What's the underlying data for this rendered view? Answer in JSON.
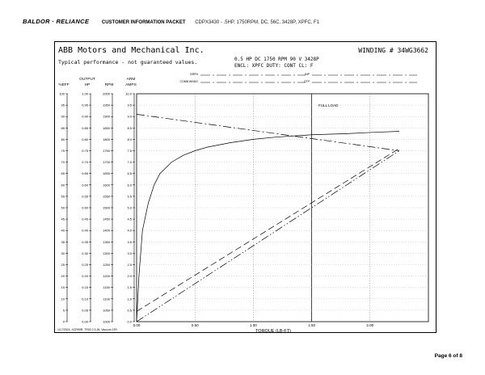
{
  "header": {
    "brand": "BALDOR · RELIANCE",
    "packet": "CUSTOMER INFORMATION PACKET",
    "description": "CDPX3430 - .5HP, 1750RPM, DC, 56C, 3428P, XPFC, F1"
  },
  "sheet": {
    "company": "ABB Motors and Mechanical Inc.",
    "winding": "WINDING # 34WG3662",
    "disclaimer": "Typical performance - not guaranteed values.",
    "spec_line1": "0.5 HP  DC  1750 RPM  90 V  3428P",
    "spec_line2": "ENCL: XPFC  DUTY: CONT  CL: F",
    "field_labels": [
      "GRPH",
      "COMB WNDG",
      "INP",
      "OTP"
    ],
    "footer_note": "1/17/2024, XCR99R, 7R00 2.3.26, Vaccum 1RY",
    "full_load_label": "FULL LOAD"
  },
  "chart_data": {
    "type": "line",
    "title": "",
    "xlabel": "TORQUE (LB-FT)",
    "xlim": [
      0,
      2.5
    ],
    "x_ticks": [
      "0.00",
      "0.50",
      "1.00",
      "1.50",
      "2.00"
    ],
    "axes": [
      {
        "label": "%EFF",
        "header": "",
        "range": [
          0,
          100
        ],
        "ticks": [
          "0",
          "5",
          "10",
          "15",
          "20",
          "25",
          "30",
          "35",
          "40",
          "45",
          "50",
          "55",
          "60",
          "65",
          "70",
          "75",
          "80",
          "85",
          "90",
          "95",
          "100"
        ]
      },
      {
        "label": "HP",
        "header": "OUTPUT",
        "range": [
          0,
          1
        ],
        "ticks": [
          "0.00",
          "0.05",
          "0.10",
          "0.15",
          "0.20",
          "0.25",
          "0.30",
          "0.35",
          "0.40",
          "0.45",
          "0.50",
          "0.55",
          "0.60",
          "0.65",
          "0.70",
          "0.75",
          "0.80",
          "0.85",
          "0.90",
          "0.95",
          "1.00"
        ]
      },
      {
        "label": "RPM",
        "header": "",
        "range": [
          1000,
          2000
        ],
        "ticks": [
          "1000",
          "1050",
          "1100",
          "1150",
          "1200",
          "1250",
          "1300",
          "1350",
          "1400",
          "1450",
          "1500",
          "1550",
          "1600",
          "1650",
          "1700",
          "1750",
          "1800",
          "1850",
          "1900",
          "1950",
          "2000"
        ]
      },
      {
        "label": "AMPS",
        "header": "ARM",
        "range": [
          0,
          10
        ],
        "ticks": [
          "0.0",
          "0.5",
          "1.0",
          "1.5",
          "2.0",
          "2.5",
          "3.0",
          "3.5",
          "4.0",
          "4.5",
          "5.0",
          "5.5",
          "6.0",
          "6.5",
          "7.0",
          "7.5",
          "8.0",
          "8.5",
          "9.0",
          "9.5",
          "10.0"
        ]
      }
    ],
    "full_load_torque": 1.5,
    "series": [
      {
        "axis": "%EFF",
        "style": "solid",
        "x": [
          0.0,
          0.02,
          0.05,
          0.1,
          0.15,
          0.2,
          0.3,
          0.4,
          0.5,
          0.6,
          0.8,
          1.0,
          1.2,
          1.5,
          1.8,
          2.0,
          2.25
        ],
        "y": [
          0,
          20,
          40,
          52,
          60,
          65,
          70,
          73,
          75,
          76.5,
          78.5,
          80,
          81,
          82,
          82.5,
          83,
          83.5
        ]
      },
      {
        "axis": "RPM",
        "style": "dash-dot",
        "x": [
          0.0,
          2.25
        ],
        "y": [
          1910,
          1750
        ]
      },
      {
        "axis": "HP",
        "style": "dash-dot-dot",
        "x": [
          0.0,
          2.25
        ],
        "y": [
          0.0,
          0.75
        ]
      },
      {
        "axis": "AMPS",
        "style": "long-dash",
        "x": [
          0.0,
          2.25
        ],
        "y": [
          0.45,
          7.6
        ]
      }
    ],
    "grid": true,
    "legend": "none"
  }
}
